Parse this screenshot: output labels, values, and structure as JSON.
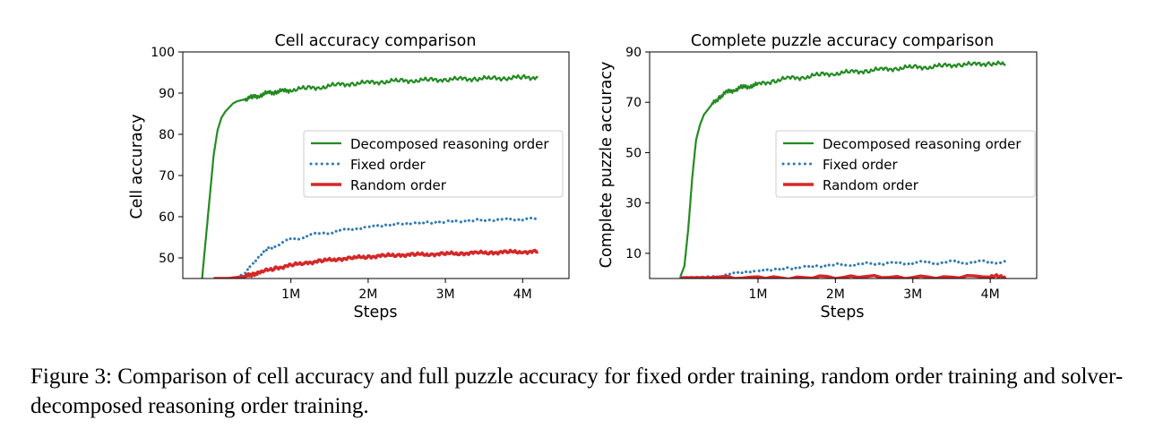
{
  "figure_caption": "Figure 3: Comparison of cell accuracy and full puzzle accuracy for fixed order training, random order training and solver-decomposed reasoning order training.",
  "colors": {
    "decomposed": "#238b21",
    "fixed": "#2f7ab5",
    "random": "#d62728"
  },
  "chart_data": [
    {
      "type": "line",
      "title": "Cell accuracy comparison",
      "xlabel": "Steps",
      "ylabel": "Cell accuracy",
      "xlim": [
        -400000,
        4600000
      ],
      "ylim": [
        45,
        100
      ],
      "xticks": [
        1000000,
        2000000,
        3000000,
        4000000
      ],
      "xtick_labels": [
        "1M",
        "2M",
        "3M",
        "4M"
      ],
      "yticks": [
        50,
        60,
        70,
        80,
        90,
        100
      ],
      "ytick_labels": [
        "50",
        "60",
        "70",
        "80",
        "90",
        "100"
      ],
      "legend_position": "center-right",
      "legend": [
        "Decomposed reasoning order",
        "Fixed order",
        "Random order"
      ],
      "series": [
        {
          "name": "Decomposed reasoning order",
          "style": "solid",
          "x": [
            -150000,
            -100000,
            -50000,
            0,
            50000,
            100000,
            150000,
            200000,
            250000,
            300000,
            400000,
            500000,
            600000,
            700000,
            800000,
            900000,
            1000000,
            1200000,
            1400000,
            1600000,
            1800000,
            2000000,
            2200000,
            2400000,
            2600000,
            2800000,
            3000000,
            3200000,
            3400000,
            3600000,
            3800000,
            4000000,
            4200000
          ],
          "y": [
            45,
            55,
            65,
            75,
            81,
            84,
            85.5,
            86.5,
            87.5,
            88,
            88.5,
            89,
            89.5,
            90,
            90.3,
            90.5,
            90.8,
            91.2,
            91.5,
            92,
            92.3,
            92.5,
            92.8,
            93,
            93.1,
            93.2,
            93.3,
            93.4,
            93.5,
            93.6,
            93.7,
            93.8,
            93.8
          ]
        },
        {
          "name": "Fixed order",
          "style": "dotted",
          "x": [
            300000,
            400000,
            500000,
            600000,
            700000,
            800000,
            1000000,
            1200000,
            1400000,
            1600000,
            1800000,
            2000000,
            2200000,
            2400000,
            2600000,
            2800000,
            3000000,
            3200000,
            3400000,
            3600000,
            3800000,
            4000000,
            4200000
          ],
          "y": [
            45,
            46.5,
            48.5,
            50.5,
            52,
            53,
            54.5,
            55.3,
            56,
            56.5,
            57,
            57.5,
            57.9,
            58.2,
            58.4,
            58.6,
            58.8,
            59,
            59.1,
            59.2,
            59.3,
            59.4,
            59.4
          ]
        },
        {
          "name": "Random order",
          "style": "solid",
          "x": [
            0,
            200000,
            400000,
            500000,
            600000,
            800000,
            1000000,
            1200000,
            1400000,
            1600000,
            1800000,
            2000000,
            2200000,
            2400000,
            2600000,
            2800000,
            3000000,
            3200000,
            3400000,
            3600000,
            3800000,
            4000000,
            4200000
          ],
          "y": [
            45,
            45,
            45.5,
            46,
            46.5,
            47.5,
            48.2,
            48.8,
            49.3,
            49.7,
            50,
            50.3,
            50.5,
            50.7,
            50.8,
            50.9,
            51,
            51.1,
            51.2,
            51.3,
            51.4,
            51.5,
            51.5
          ]
        }
      ]
    },
    {
      "type": "line",
      "title": "Complete puzzle accuracy comparison",
      "xlabel": "Steps",
      "ylabel": "Complete puzzle accuracy",
      "xlim": [
        -400000,
        4600000
      ],
      "ylim": [
        0,
        90
      ],
      "xticks": [
        1000000,
        2000000,
        3000000,
        4000000
      ],
      "xtick_labels": [
        "1M",
        "2M",
        "3M",
        "4M"
      ],
      "yticks": [
        10,
        30,
        50,
        70,
        90
      ],
      "ytick_labels": [
        "10",
        "30",
        "50",
        "70",
        "90"
      ],
      "legend_position": "center-right",
      "legend": [
        "Decomposed reasoning order",
        "Fixed order",
        "Random order"
      ],
      "series": [
        {
          "name": "Decomposed reasoning order",
          "style": "solid",
          "x": [
            0,
            50000,
            100000,
            150000,
            200000,
            250000,
            300000,
            400000,
            500000,
            600000,
            700000,
            800000,
            900000,
            1000000,
            1200000,
            1400000,
            1600000,
            1800000,
            2000000,
            2200000,
            2400000,
            2600000,
            2800000,
            3000000,
            3200000,
            3400000,
            3600000,
            3800000,
            4000000,
            4200000
          ],
          "y": [
            1,
            5,
            20,
            40,
            55,
            61,
            65,
            69,
            72,
            74,
            75,
            76,
            76.5,
            77,
            78.5,
            79.5,
            80,
            81,
            81.5,
            82,
            82.5,
            83,
            83.5,
            84,
            84,
            84.5,
            85,
            85,
            85.5,
            85
          ]
        },
        {
          "name": "Fixed order",
          "style": "dotted",
          "x": [
            0,
            200000,
            400000,
            600000,
            800000,
            1000000,
            1200000,
            1400000,
            1600000,
            1800000,
            2000000,
            2200000,
            2400000,
            2600000,
            2800000,
            3000000,
            3200000,
            3400000,
            3600000,
            3800000,
            4000000,
            4200000
          ],
          "y": [
            0.5,
            0.5,
            0.8,
            1.5,
            2.5,
            3,
            3.5,
            4,
            4.5,
            5,
            5.5,
            5.5,
            5.8,
            6,
            6,
            6.2,
            6.3,
            6.4,
            6.5,
            6.5,
            6.6,
            6.5
          ]
        },
        {
          "name": "Random order",
          "style": "solid",
          "x": [
            0,
            1000000,
            2000000,
            3000000,
            4000000,
            4200000
          ],
          "y": [
            0.3,
            0.4,
            0.5,
            0.6,
            0.8,
            0.8
          ]
        }
      ]
    }
  ]
}
